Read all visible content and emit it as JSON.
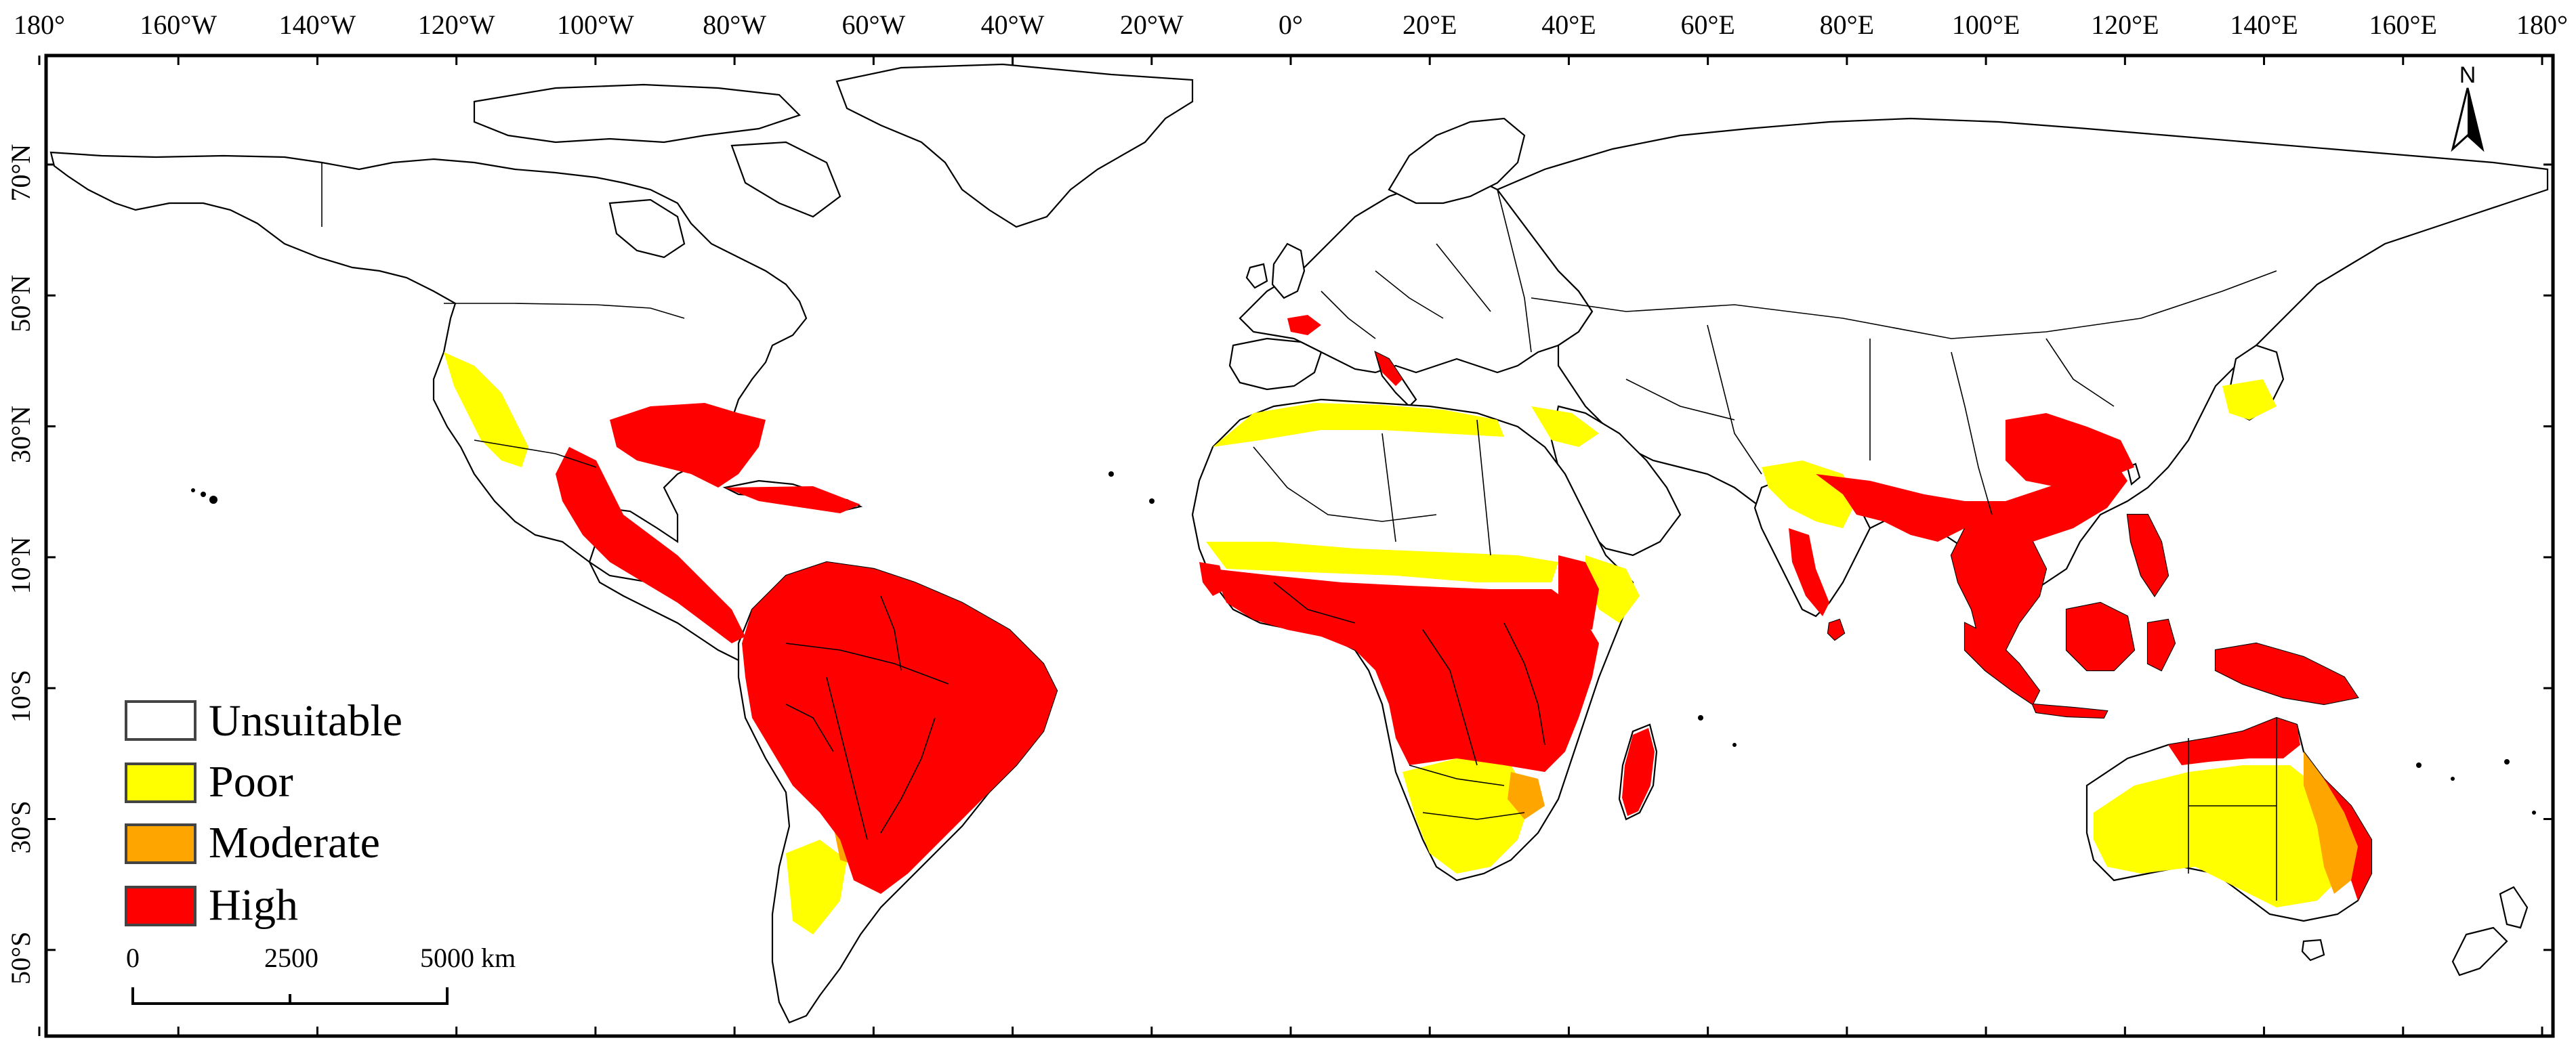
{
  "map": {
    "longitude_ticks": [
      "180°",
      "160°W",
      "140°W",
      "120°W",
      "100°W",
      "80°W",
      "60°W",
      "40°W",
      "20°W",
      "0°",
      "20°E",
      "40°E",
      "60°E",
      "80°E",
      "100°E",
      "120°E",
      "140°E",
      "160°E",
      "180°"
    ],
    "latitude_ticks": [
      "70°N",
      "50°N",
      "30°N",
      "10°N",
      "10°S",
      "30°S",
      "50°S"
    ],
    "legend": {
      "items": [
        {
          "label": "Unsuitable",
          "color": "#ffffff"
        },
        {
          "label": "Poor",
          "color": "#ffff00"
        },
        {
          "label": "Moderate",
          "color": "#ffa500"
        },
        {
          "label": "High",
          "color": "#ff0000"
        }
      ]
    },
    "scale_bar": {
      "labels": [
        "0",
        "2500",
        "5000 km"
      ]
    },
    "north_arrow": {
      "label": "N"
    },
    "suitability_colors": {
      "unsuitable": "#ffffff",
      "poor": "#ffff00",
      "moderate": "#ffa500",
      "high": "#ff0000"
    }
  }
}
